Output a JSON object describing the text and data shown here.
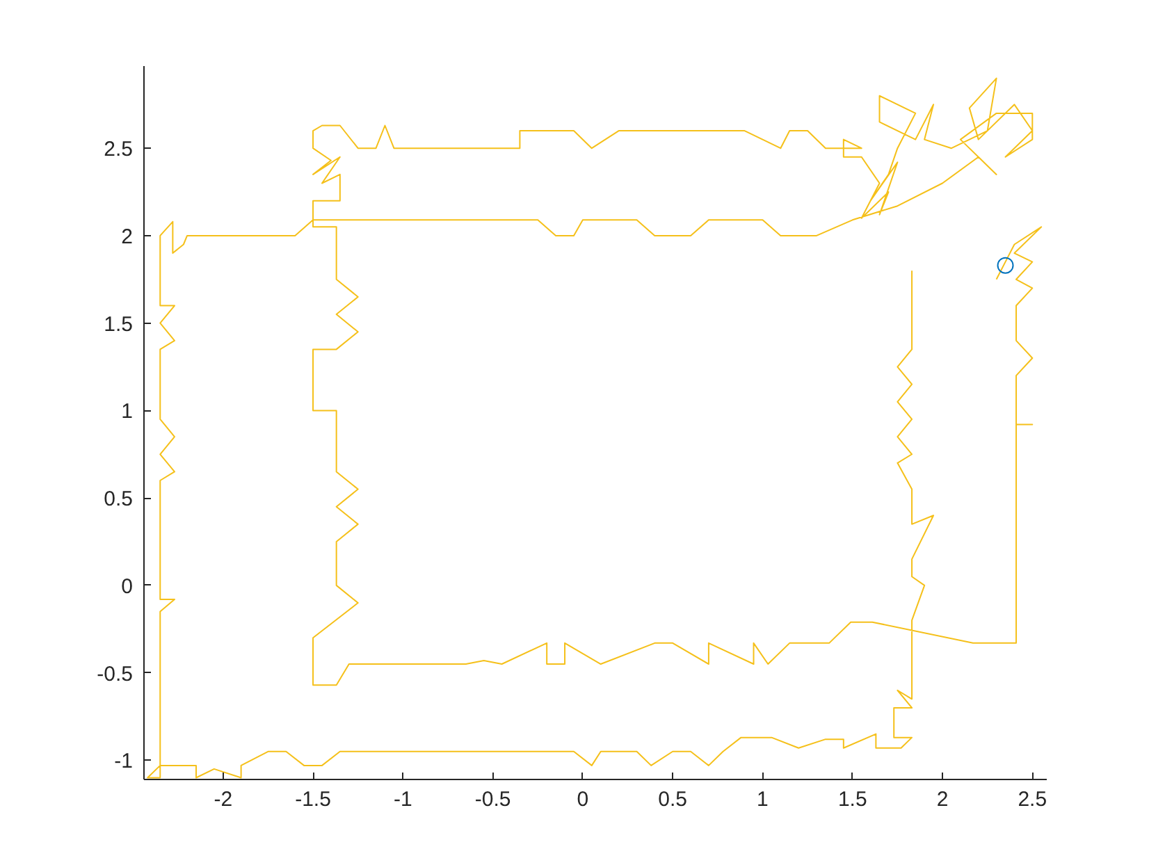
{
  "chart_data": {
    "type": "line",
    "xlim": [
      -2.44,
      2.58
    ],
    "ylim": [
      -1.11,
      2.97
    ],
    "xticks": [
      -2,
      -1.5,
      -1,
      -0.5,
      0,
      0.5,
      1,
      1.5,
      2,
      2.5
    ],
    "yticks": [
      -1,
      -0.5,
      0,
      0.5,
      1,
      1.5,
      2,
      2.5
    ],
    "grid": false,
    "series": [
      {
        "color": "#f5c01a",
        "marker": "none",
        "x": [
          1.83,
          1.83,
          1.75,
          1.83,
          1.75,
          1.83,
          1.75,
          1.83,
          1.75,
          1.83,
          1.83,
          1.95,
          1.83,
          1.83,
          1.9,
          1.83,
          1.83,
          1.75,
          1.83,
          1.73,
          1.73,
          1.83,
          1.77,
          1.63,
          1.63,
          1.45,
          1.45,
          1.35,
          1.2,
          1.05,
          0.88,
          0.78,
          0.7,
          0.6,
          0.5,
          0.38,
          0.3,
          0.1,
          0.05,
          -0.05,
          -0.3,
          -1.2,
          -1.35,
          -1.45,
          -1.55,
          -1.65,
          -1.75,
          -1.9,
          -1.9,
          -2.05,
          -2.15,
          -2.15,
          -2.35,
          -2.42,
          -2.35,
          -2.35,
          -2.27,
          -2.35,
          -2.35,
          -2.27,
          -2.35,
          -2.27,
          -2.35,
          -2.35,
          -2.27,
          -2.35,
          -2.27,
          -2.35,
          -2.35,
          -2.28,
          -2.28,
          -2.22,
          -2.2,
          -1.6,
          -1.5,
          -0.25,
          -0.15,
          -0.05,
          0.0,
          0.3,
          0.4,
          0.6,
          0.7,
          1.0,
          1.1,
          1.3,
          1.5,
          1.75,
          2.0,
          2.2,
          2.3,
          2.1,
          2.3,
          2.5,
          2.5,
          2.35,
          2.5,
          2.4,
          2.2,
          2.15,
          2.3,
          2.25,
          2.05,
          1.9,
          1.95,
          1.85,
          1.65,
          1.65,
          1.85,
          1.75,
          1.7,
          1.6,
          1.75,
          1.65,
          1.7,
          1.55,
          1.65,
          1.55,
          1.45,
          1.45,
          1.55,
          1.35,
          1.25,
          1.15,
          1.1,
          0.9,
          0.2,
          0.05,
          -0.05,
          -0.35,
          -0.35,
          -1.05,
          -1.1,
          -1.15,
          -1.25,
          -1.35,
          -1.45,
          -1.5,
          -1.5,
          -1.4,
          -1.5,
          -1.35,
          -1.45,
          -1.35,
          -1.35,
          -1.5,
          -1.5,
          -1.37,
          -1.37,
          -1.25,
          -1.37,
          -1.25,
          -1.37,
          -1.5,
          -1.5,
          -1.37,
          -1.37,
          -1.25,
          -1.37,
          -1.25,
          -1.37,
          -1.37,
          -1.25,
          -1.5,
          -1.5,
          -1.37,
          -1.3,
          -0.65,
          -0.55,
          -0.45,
          -0.2,
          -0.2,
          -0.1,
          -0.1,
          0.1,
          0.4,
          0.5,
          0.7,
          0.7,
          0.95,
          0.95,
          1.03,
          1.15,
          1.37,
          1.49,
          1.61,
          2.17,
          2.28,
          2.41,
          2.41,
          2.5,
          2.41,
          2.41,
          2.5,
          2.41,
          2.41,
          2.5,
          2.41,
          2.5,
          2.4,
          2.55,
          2.4,
          2.35,
          2.3
        ],
        "values": [
          1.8,
          1.35,
          1.25,
          1.15,
          1.05,
          0.95,
          0.85,
          0.75,
          0.7,
          0.55,
          0.35,
          0.4,
          0.15,
          0.05,
          0.0,
          -0.2,
          -0.65,
          -0.6,
          -0.7,
          -0.7,
          -0.87,
          -0.87,
          -0.93,
          -0.93,
          -0.85,
          -0.93,
          -0.88,
          -0.88,
          -0.93,
          -0.87,
          -0.87,
          -0.95,
          -1.03,
          -0.95,
          -0.95,
          -1.03,
          -0.95,
          -0.95,
          -1.03,
          -0.95,
          -0.95,
          -0.95,
          -0.95,
          -1.03,
          -1.03,
          -0.95,
          -0.95,
          -1.03,
          -1.1,
          -1.05,
          -1.1,
          -1.03,
          -1.03,
          -1.1,
          -1.1,
          -0.15,
          -0.08,
          -0.08,
          0.6,
          0.65,
          0.75,
          0.85,
          0.95,
          1.35,
          1.4,
          1.5,
          1.6,
          1.6,
          2.0,
          2.08,
          1.9,
          1.95,
          2.0,
          2.0,
          2.09,
          2.09,
          2.0,
          2.0,
          2.09,
          2.09,
          2.0,
          2.0,
          2.09,
          2.09,
          2.0,
          2.0,
          2.09,
          2.17,
          2.3,
          2.45,
          2.35,
          2.55,
          2.7,
          2.7,
          2.55,
          2.45,
          2.6,
          2.75,
          2.55,
          2.73,
          2.9,
          2.6,
          2.5,
          2.55,
          2.75,
          2.55,
          2.65,
          2.8,
          2.7,
          2.5,
          2.35,
          2.2,
          2.42,
          2.12,
          2.25,
          2.1,
          2.3,
          2.45,
          2.45,
          2.55,
          2.5,
          2.5,
          2.6,
          2.6,
          2.5,
          2.6,
          2.6,
          2.5,
          2.6,
          2.6,
          2.5,
          2.5,
          2.63,
          2.5,
          2.5,
          2.63,
          2.63,
          2.6,
          2.5,
          2.43,
          2.35,
          2.45,
          2.3,
          2.35,
          2.2,
          2.2,
          2.05,
          2.05,
          1.75,
          1.65,
          1.55,
          1.45,
          1.35,
          1.35,
          1.0,
          1.0,
          0.65,
          0.55,
          0.45,
          0.35,
          0.25,
          0.0,
          -0.1,
          -0.3,
          -0.57,
          -0.57,
          -0.45,
          -0.45,
          -0.43,
          -0.45,
          -0.33,
          -0.45,
          -0.45,
          -0.33,
          -0.45,
          -0.33,
          -0.33,
          -0.45,
          -0.33,
          -0.45,
          -0.33,
          -0.45,
          -0.33,
          -0.33,
          -0.21,
          -0.21,
          -0.33,
          -0.33,
          -0.33,
          0.92,
          0.92,
          0.92,
          1.2,
          1.3,
          1.4,
          1.6,
          1.7,
          1.75,
          1.85,
          1.9,
          2.05,
          1.95,
          1.85,
          1.75
        ]
      },
      {
        "type": "scatter",
        "color": "#0072bd",
        "marker": "circle",
        "x": [
          2.35
        ],
        "values": [
          1.83
        ]
      }
    ]
  }
}
